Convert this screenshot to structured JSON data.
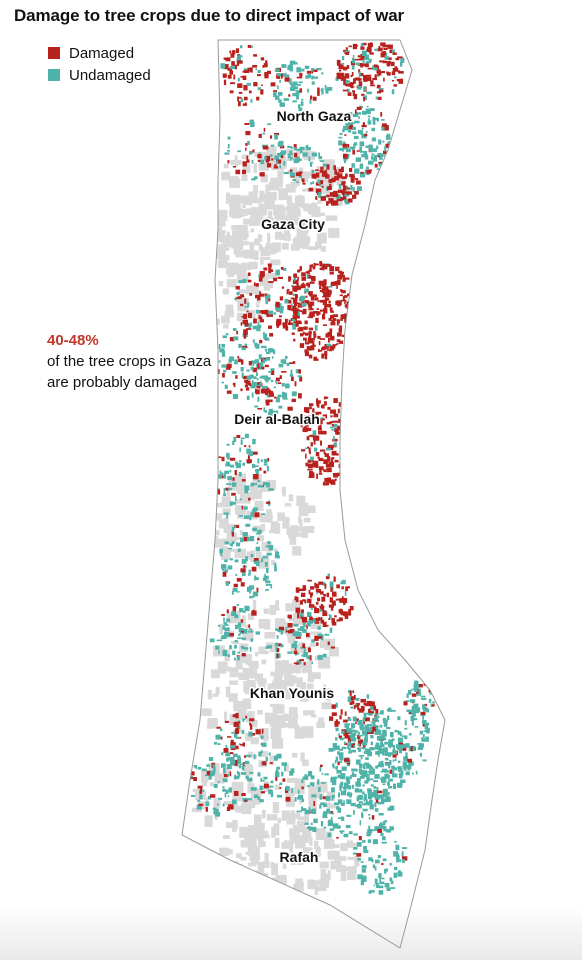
{
  "title": "Damage to tree crops due to direct impact of war",
  "legend": {
    "items": [
      {
        "label": "Damaged",
        "color": "#b8211d"
      },
      {
        "label": "Undamaged",
        "color": "#4fb3a9"
      }
    ]
  },
  "stat": {
    "value": "40-48%",
    "text": "of the tree crops in Gaza are probably damaged"
  },
  "places": {
    "north_gaza": "North Gaza",
    "gaza_city": "Gaza City",
    "deir_al_balah": "Deir al-Balah",
    "khan_younis": "Khan Younis",
    "rafah": "Rafah"
  },
  "colors": {
    "damaged": "#b8211d",
    "undamaged": "#4fb3a9",
    "built_up": "#d9d9d9",
    "outline": "#9a9a9a",
    "stat_highlight": "#c0392b"
  }
}
